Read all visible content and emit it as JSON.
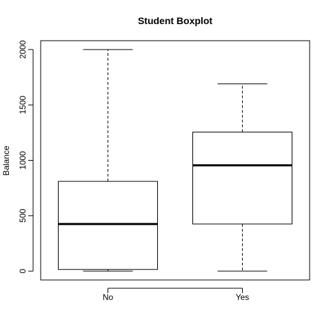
{
  "chart_data": {
    "type": "boxplot",
    "title": "Student Boxplot",
    "xlabel": "",
    "ylabel": "Balance",
    "categories": [
      "No",
      "Yes"
    ],
    "boxes": [
      {
        "category": "No",
        "whisker_low": 0,
        "q1": 15,
        "median": 425,
        "q3": 810,
        "whisker_high": 2000
      },
      {
        "category": "Yes",
        "whisker_low": 0,
        "q1": 425,
        "median": 955,
        "q3": 1255,
        "whisker_high": 1690
      }
    ],
    "y_ticks": [
      0,
      500,
      1000,
      1500,
      2000
    ],
    "y_tick_labels": [
      "0",
      "500",
      "1000",
      "1500",
      "2000"
    ],
    "ylim": [
      -80,
      2080
    ],
    "grid": false,
    "colors": {
      "box_fill": "#ffffff",
      "stroke": "#000000"
    }
  }
}
